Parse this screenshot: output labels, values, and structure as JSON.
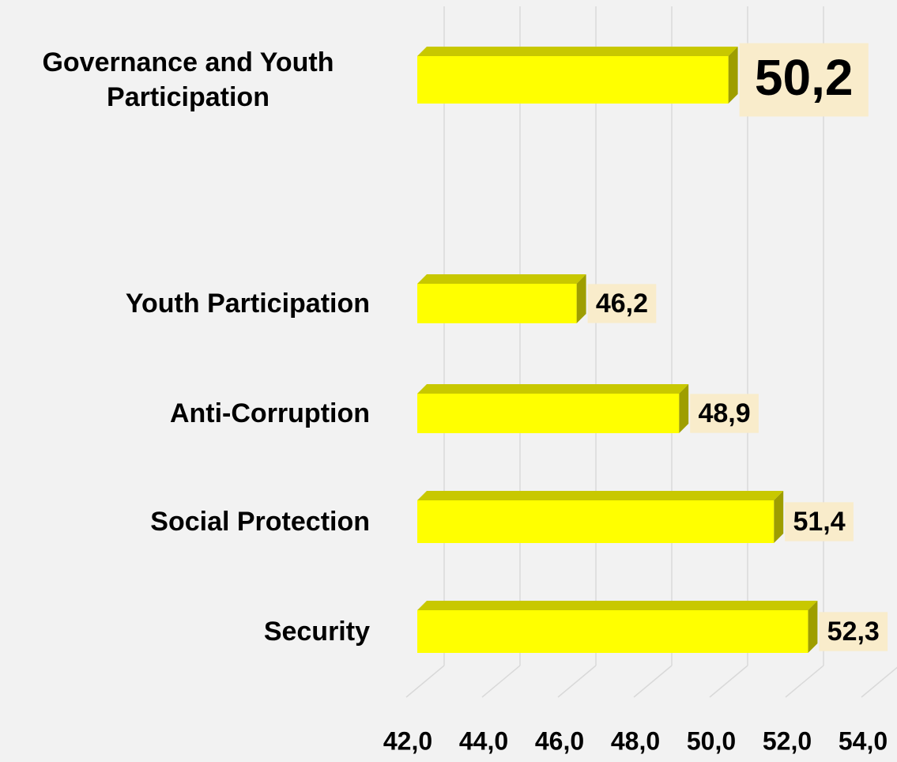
{
  "chart_data": {
    "type": "bar",
    "orientation": "horizontal",
    "categories": [
      "Governance and Youth Participation",
      "Youth Participation",
      "Anti-Corruption",
      "Social Protection",
      "Security"
    ],
    "values": [
      50.2,
      46.2,
      48.9,
      51.4,
      52.3
    ],
    "value_labels": [
      "50,2",
      "46,2",
      "48,9",
      "51,4",
      "52,3"
    ],
    "color": "#ffff00",
    "xlim": [
      42,
      54
    ],
    "xticks": [
      {
        "value": 42,
        "label": "42,0"
      },
      {
        "value": 44,
        "label": "44,0"
      },
      {
        "value": 46,
        "label": "46,0"
      },
      {
        "value": 48,
        "label": "48,0"
      },
      {
        "value": 50,
        "label": "50,0"
      },
      {
        "value": 52,
        "label": "52,0"
      },
      {
        "value": 54,
        "label": "54,0"
      }
    ],
    "grid": true
  }
}
